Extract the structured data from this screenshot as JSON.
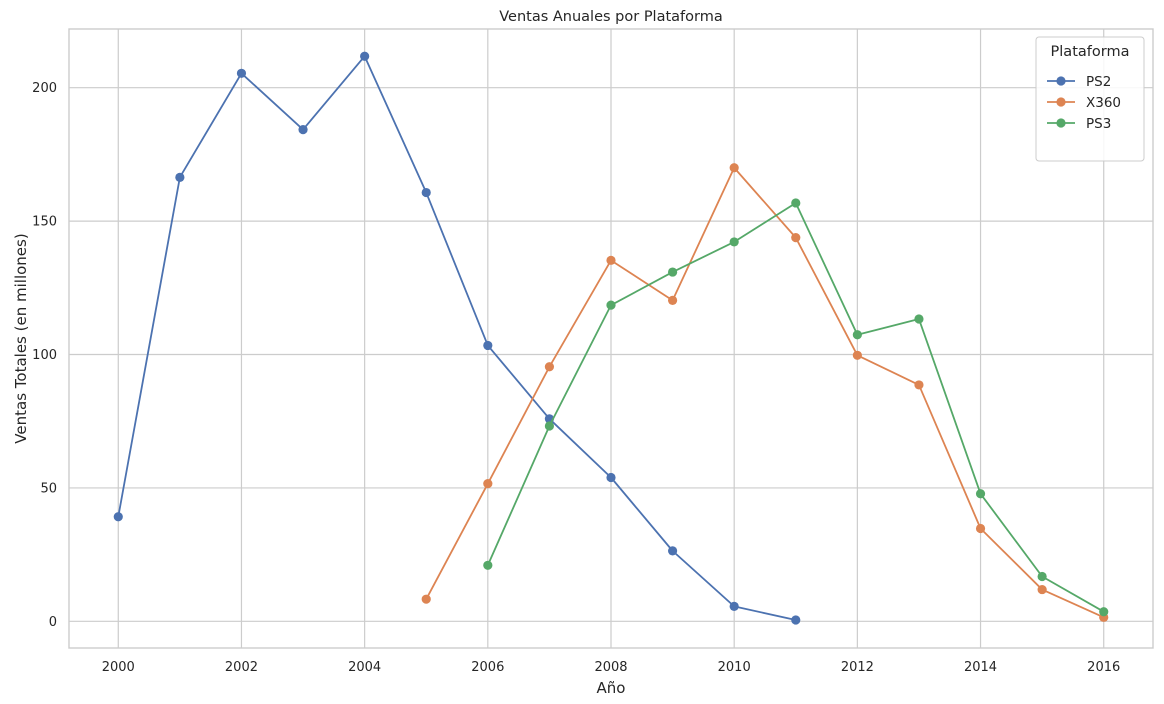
{
  "chart_data": {
    "type": "line",
    "title": "Ventas Anuales por Plataforma",
    "xlabel": "Año",
    "ylabel": "Ventas Totales (en millones)",
    "xlim": [
      1999.2,
      2016.8
    ],
    "ylim": [
      -10,
      222
    ],
    "x_ticks": [
      2000,
      2002,
      2004,
      2006,
      2008,
      2010,
      2012,
      2014,
      2016
    ],
    "y_ticks": [
      0,
      50,
      100,
      150,
      200
    ],
    "grid": true,
    "legend": {
      "title": "Plataforma",
      "placement": "top-right"
    },
    "series": [
      {
        "name": "PS2",
        "color": "#4c72b0",
        "x": [
          2000,
          2001,
          2002,
          2003,
          2004,
          2005,
          2006,
          2007,
          2008,
          2009,
          2010,
          2011
        ],
        "y": [
          39.2,
          166.4,
          205.4,
          184.3,
          211.8,
          160.7,
          103.4,
          75.9,
          53.9,
          26.4,
          5.6,
          0.5
        ]
      },
      {
        "name": "X360",
        "color": "#dd8452",
        "x": [
          2005,
          2006,
          2007,
          2008,
          2009,
          2010,
          2011,
          2012,
          2013,
          2014,
          2015,
          2016
        ],
        "y": [
          8.3,
          51.6,
          95.4,
          135.3,
          120.3,
          170.0,
          143.8,
          99.7,
          88.6,
          34.8,
          11.9,
          1.5
        ]
      },
      {
        "name": "PS3",
        "color": "#55a868",
        "x": [
          2006,
          2007,
          2008,
          2009,
          2010,
          2011,
          2012,
          2013,
          2014,
          2015,
          2016
        ],
        "y": [
          21.0,
          73.2,
          118.5,
          130.9,
          142.2,
          156.8,
          107.4,
          113.3,
          47.8,
          16.8,
          3.6
        ]
      }
    ]
  }
}
